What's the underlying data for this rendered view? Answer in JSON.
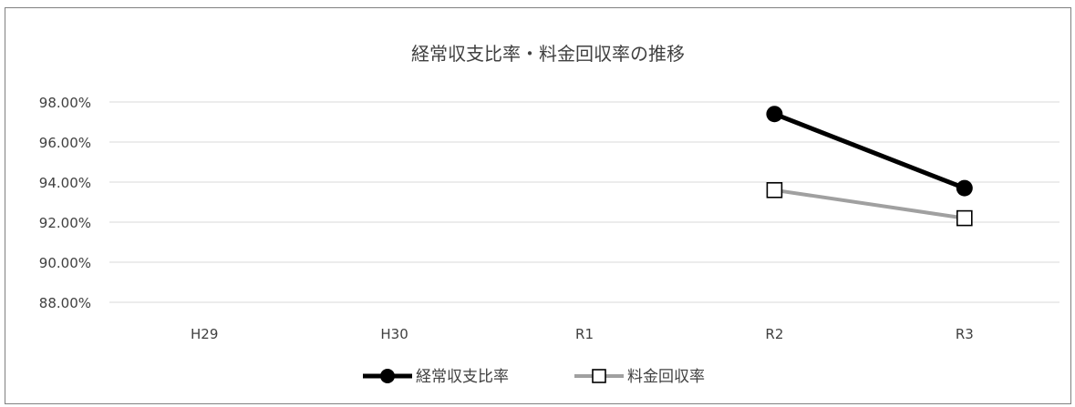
{
  "chart_data": {
    "type": "line",
    "title": "経常収支比率・料金回収率の推移",
    "categories": [
      "H29",
      "H30",
      "R1",
      "R2",
      "R3"
    ],
    "y_ticks": [
      "98.00%",
      "96.00%",
      "94.00%",
      "92.00%",
      "90.00%",
      "88.00%"
    ],
    "ylim": [
      88,
      98
    ],
    "grid": true,
    "legend_position": "bottom",
    "series": [
      {
        "name": "経常収支比率",
        "color": "#000000",
        "marker": "circle",
        "values": [
          null,
          null,
          null,
          97.4,
          93.7
        ]
      },
      {
        "name": "料金回収率",
        "color": "#a0a0a0",
        "marker": "square",
        "values": [
          null,
          null,
          null,
          93.6,
          92.2
        ]
      }
    ]
  }
}
